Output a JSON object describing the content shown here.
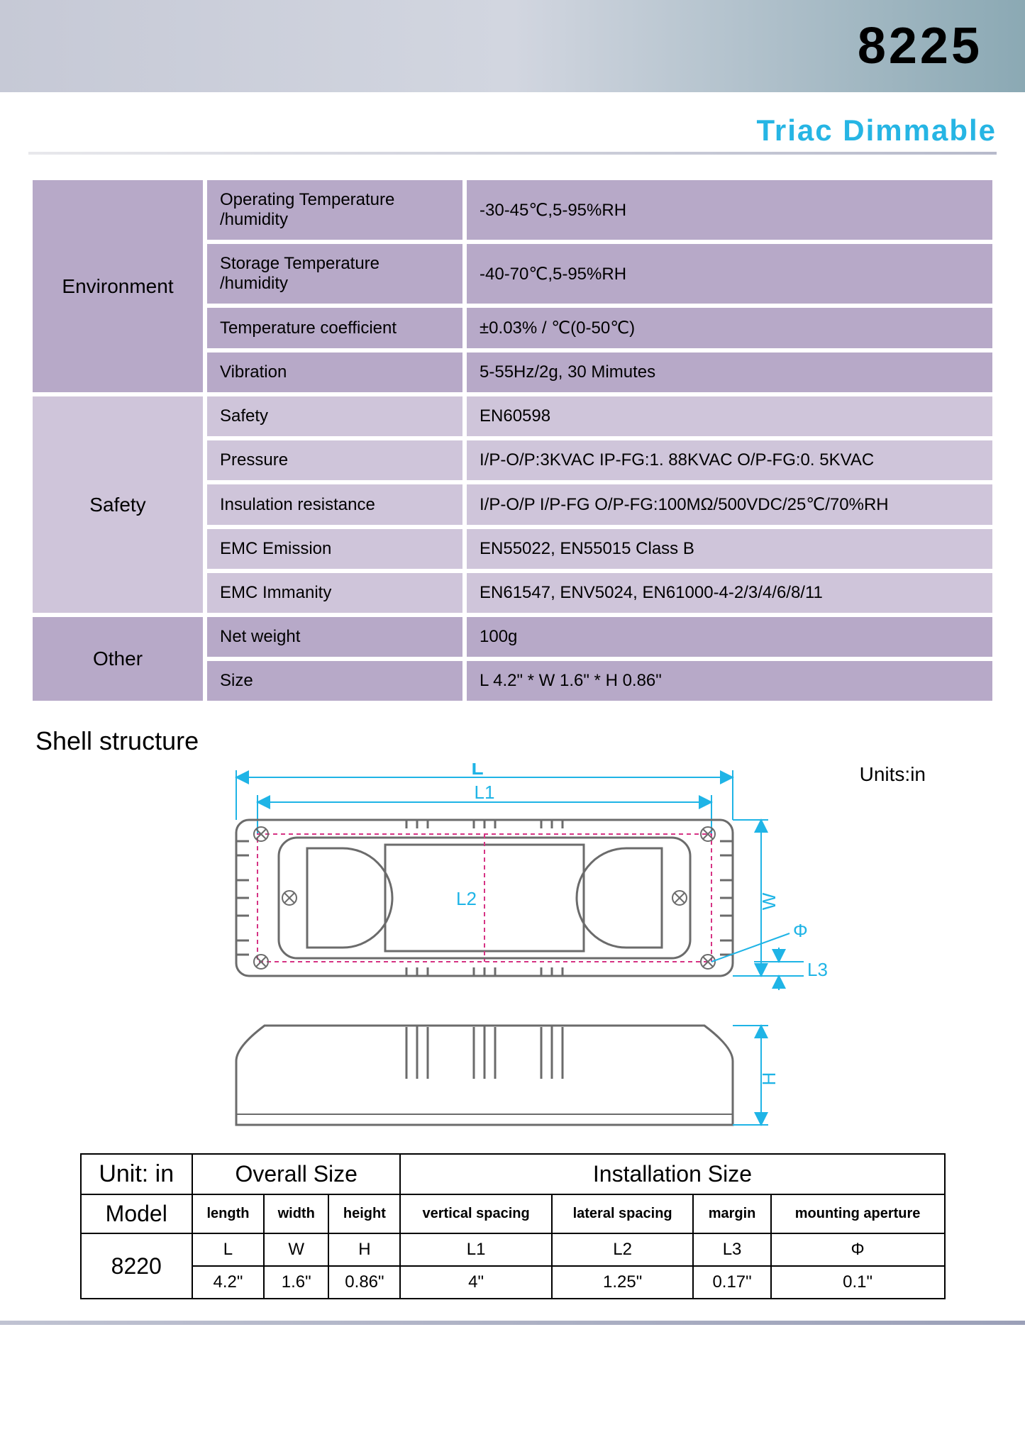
{
  "header": {
    "product_number": "8225",
    "subtitle": "Triac  Dimmable"
  },
  "colors": {
    "lavender": "#b7a9c8",
    "lavender_light": "#cfc5da",
    "cyan": "#1fb4e6",
    "magenta": "#d63384",
    "header_grad_l": "#c6c9d6",
    "header_grad_r": "#8ba9b4"
  },
  "spec_sections": [
    {
      "category": "Environment",
      "alt": false,
      "rows": [
        {
          "label": "Operating   Temperature   /humidity",
          "value": "-30-45℃,5-95%RH"
        },
        {
          "label": "Storage  Temperature   /humidity",
          "value": "-40-70℃,5-95%RH"
        },
        {
          "label": "Temperature    coefficient",
          "value": "±0.03% / ℃(0-50℃)"
        },
        {
          "label": "Vibration",
          "value": "5-55Hz/2g, 30  Mimutes"
        }
      ]
    },
    {
      "category": "Safety",
      "alt": true,
      "rows": [
        {
          "label": "Safety",
          "value": "EN60598"
        },
        {
          "label": "Pressure",
          "value": "I/P-O/P:3KVAC   IP-FG:1. 88KVAC   O/P-FG:0. 5KVAC"
        },
        {
          "label": "Insulation    resistance",
          "value": "I/P-O/P   I/P-FG   O/P-FG:100MΩ/500VDC/25℃/70%RH"
        },
        {
          "label": "EMC  Emission",
          "value": "EN55022, EN55015  Class  B"
        },
        {
          "label": "EMC  Immanity",
          "value": "EN61547, ENV5024, EN61000-4-2/3/4/6/8/11"
        }
      ]
    },
    {
      "category": "Other",
      "alt": false,
      "rows": [
        {
          "label": "Net  weight",
          "value": "100g"
        },
        {
          "label": "Size",
          "value": "L 4.2\" * W 1.6\" * H 0.86\""
        }
      ]
    }
  ],
  "shell_structure": {
    "title": "Shell  structure",
    "units_label": "Units:in",
    "dim_labels": {
      "L": "L",
      "L1": "L1",
      "L2": "L2",
      "L3": "L3",
      "W": "W",
      "H": "H",
      "Phi": "Φ"
    },
    "diagram_colors": {
      "outline": "#6b6b6b",
      "dim": "#1fb4e6",
      "dashed": "#d63384"
    }
  },
  "dimensions_table": {
    "unit_header": "Unit:   in",
    "overall_header": "Overall Size",
    "install_header": "Installation Size",
    "model_header": "Model",
    "columns_row1": [
      "length",
      "width",
      "height",
      "vertical spacing",
      "lateral spacing",
      "margin",
      "mounting aperture"
    ],
    "model": "8220",
    "symbols": [
      "L",
      "W",
      "H",
      "L1",
      "L2",
      "L3",
      "Φ"
    ],
    "values": [
      "4.2\"",
      "1.6\"",
      "0.86\"",
      "4\"",
      "1.25\"",
      "0.17\"",
      "0.1\""
    ]
  }
}
